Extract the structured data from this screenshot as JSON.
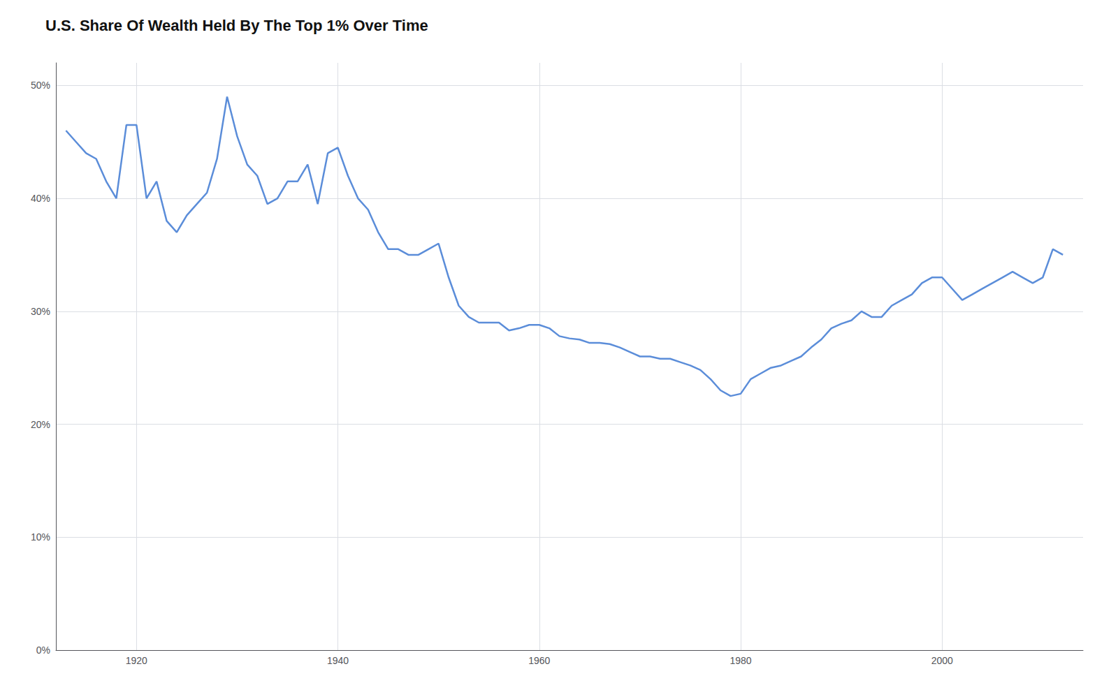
{
  "chart_data": {
    "type": "line",
    "title": "U.S. Share Of Wealth Held By The Top 1% Over Time",
    "x": [
      1913,
      1914,
      1915,
      1916,
      1917,
      1918,
      1919,
      1920,
      1921,
      1922,
      1923,
      1924,
      1925,
      1926,
      1927,
      1928,
      1929,
      1930,
      1931,
      1932,
      1933,
      1934,
      1935,
      1936,
      1937,
      1938,
      1939,
      1940,
      1941,
      1942,
      1943,
      1944,
      1945,
      1946,
      1947,
      1948,
      1949,
      1950,
      1951,
      1952,
      1953,
      1954,
      1955,
      1956,
      1957,
      1958,
      1959,
      1960,
      1961,
      1962,
      1963,
      1964,
      1965,
      1966,
      1967,
      1968,
      1969,
      1970,
      1971,
      1972,
      1973,
      1974,
      1975,
      1976,
      1977,
      1978,
      1979,
      1980,
      1981,
      1982,
      1983,
      1984,
      1985,
      1986,
      1987,
      1988,
      1989,
      1990,
      1991,
      1992,
      1993,
      1994,
      1995,
      1996,
      1997,
      1998,
      1999,
      2000,
      2001,
      2002,
      2003,
      2004,
      2005,
      2006,
      2007,
      2008,
      2009,
      2010,
      2011,
      2012
    ],
    "values": [
      0.46,
      0.45,
      0.44,
      0.435,
      0.415,
      0.4,
      0.465,
      0.465,
      0.4,
      0.415,
      0.38,
      0.37,
      0.385,
      0.395,
      0.405,
      0.435,
      0.49,
      0.455,
      0.43,
      0.42,
      0.395,
      0.4,
      0.415,
      0.415,
      0.43,
      0.395,
      0.44,
      0.445,
      0.42,
      0.4,
      0.39,
      0.37,
      0.355,
      0.355,
      0.35,
      0.35,
      0.355,
      0.36,
      0.33,
      0.305,
      0.295,
      0.29,
      0.29,
      0.29,
      0.283,
      0.285,
      0.288,
      0.288,
      0.285,
      0.278,
      0.276,
      0.275,
      0.272,
      0.272,
      0.271,
      0.268,
      0.264,
      0.26,
      0.26,
      0.258,
      0.258,
      0.255,
      0.252,
      0.248,
      0.24,
      0.23,
      0.225,
      0.227,
      0.24,
      0.245,
      0.25,
      0.252,
      0.256,
      0.26,
      0.268,
      0.275,
      0.285,
      0.289,
      0.292,
      0.3,
      0.295,
      0.295,
      0.305,
      0.31,
      0.315,
      0.325,
      0.33,
      0.33,
      0.32,
      0.31,
      0.315,
      0.32,
      0.325,
      0.33,
      0.335,
      0.33,
      0.325,
      0.33,
      0.355,
      0.35
    ],
    "color": "#5b8dd9",
    "xlim": [
      1912,
      2014
    ],
    "ylim": [
      0.0,
      0.52
    ],
    "xticks": [
      1920,
      1940,
      1960,
      1980,
      2000
    ],
    "yticks": [
      {
        "value": 0.0,
        "label": "0%"
      },
      {
        "value": 0.1,
        "label": "10%"
      },
      {
        "value": 0.2,
        "label": "20%"
      },
      {
        "value": 0.3,
        "label": "30%"
      },
      {
        "value": 0.4,
        "label": "40%"
      },
      {
        "value": 0.5,
        "label": "50%"
      }
    ],
    "grid": true
  }
}
